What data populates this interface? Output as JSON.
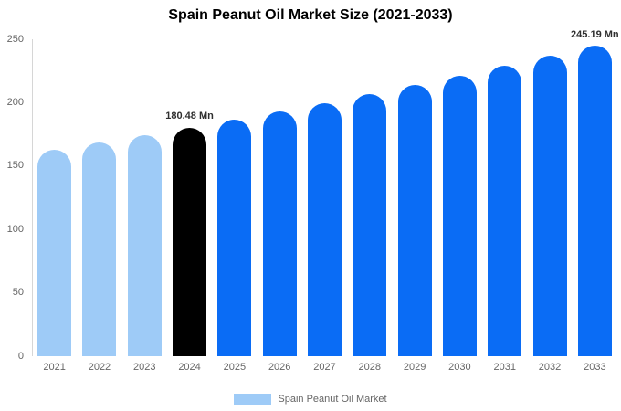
{
  "title": "Spain Peanut Oil Market Size (2021-2033)",
  "legend": {
    "label": "Spain Peanut Oil Market",
    "swatch_color": "#9ECBF7"
  },
  "colors": {
    "light_blue": "#9ECBF7",
    "primary_blue": "#0A6CF5",
    "highlight_black": "#000000",
    "axis_line": "#d6d6d6",
    "tick_text": "#666666",
    "value_label_text": "#2f2f2f"
  },
  "chart_data": {
    "type": "bar",
    "title": "Spain Peanut Oil Market Size (2021-2033)",
    "xlabel": "",
    "ylabel": "",
    "categories": [
      "2021",
      "2022",
      "2023",
      "2024",
      "2025",
      "2026",
      "2027",
      "2028",
      "2029",
      "2030",
      "2031",
      "2032",
      "2033"
    ],
    "values": [
      162.93,
      168.58,
      174.42,
      180.48,
      186.74,
      193.21,
      199.91,
      206.84,
      214.01,
      221.43,
      229.11,
      237.05,
      245.19
    ],
    "bar_colors": [
      "#9ECBF7",
      "#9ECBF7",
      "#9ECBF7",
      "#000000",
      "#0A6CF5",
      "#0A6CF5",
      "#0A6CF5",
      "#0A6CF5",
      "#0A6CF5",
      "#0A6CF5",
      "#0A6CF5",
      "#0A6CF5",
      "#0A6CF5"
    ],
    "annotations": [
      {
        "index": 3,
        "text": "180.48 Mn"
      },
      {
        "index": 12,
        "text": "245.19 Mn"
      }
    ],
    "ylim": [
      0,
      250
    ],
    "yticks": [
      0,
      50,
      100,
      150,
      200,
      250
    ],
    "grid": false,
    "legend_position": "bottom",
    "legend_entries": [
      "Spain Peanut Oil Market"
    ]
  }
}
